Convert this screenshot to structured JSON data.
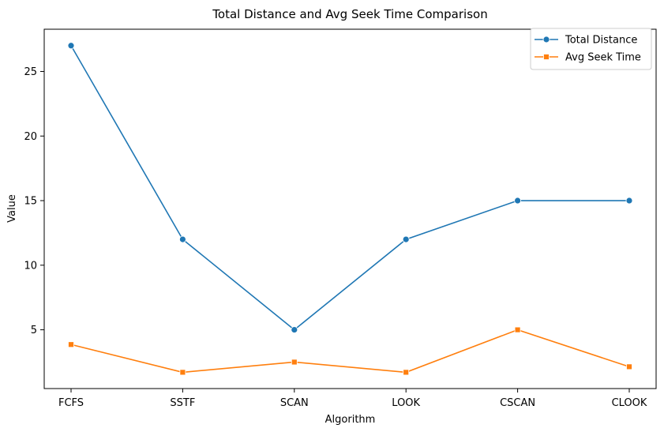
{
  "chart_data": {
    "type": "line",
    "title": "Total Distance and Avg Seek Time Comparison",
    "xlabel": "Algorithm",
    "ylabel": "Value",
    "categories": [
      "FCFS",
      "SSTF",
      "SCAN",
      "LOOK",
      "CSCAN",
      "CLOOK"
    ],
    "ylim": [
      0.45,
      28.27
    ],
    "yticks": [
      5,
      10,
      15,
      20,
      25
    ],
    "grid": false,
    "legend_position": "top-right",
    "series": [
      {
        "name": "Total Distance",
        "marker": "circle",
        "color": "#1f77b4",
        "values": [
          27,
          12,
          5,
          12,
          15,
          15
        ]
      },
      {
        "name": "Avg Seek Time",
        "marker": "square",
        "color": "#ff7f0e",
        "values": [
          3.86,
          1.71,
          2.5,
          1.71,
          5.0,
          2.14
        ]
      }
    ]
  }
}
